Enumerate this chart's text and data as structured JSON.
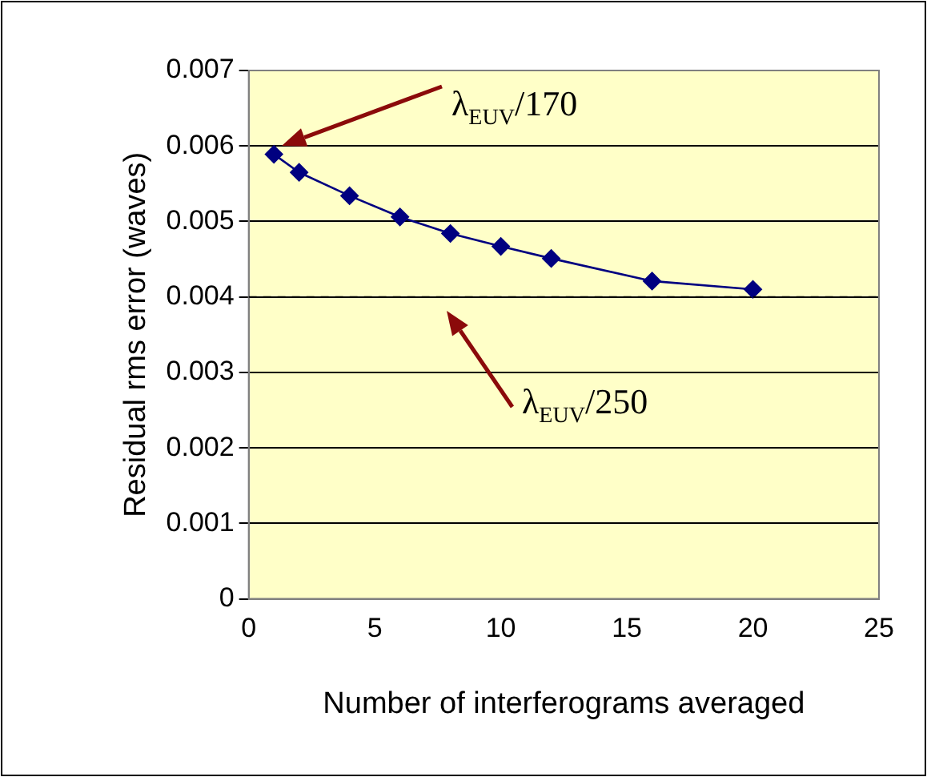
{
  "chart_data": {
    "type": "line",
    "xlabel": "Number of interferograms averaged",
    "ylabel": "Residual rms error (waves)",
    "series": [
      {
        "color": "#000080",
        "x": [
          1,
          2,
          4,
          6,
          8,
          10,
          12,
          16,
          20
        ],
        "values": [
          0.00589,
          0.00565,
          0.00534,
          0.00506,
          0.00484,
          0.00467,
          0.00451,
          0.00421,
          0.0041
        ]
      }
    ],
    "xlim": [
      0,
      25
    ],
    "xticks": [
      0,
      5,
      10,
      15,
      20,
      25
    ],
    "ylim": [
      0,
      0.007
    ],
    "yticks": [
      0,
      0.001,
      0.002,
      0.003,
      0.004,
      0.005,
      0.006,
      0.007
    ],
    "grid": "y",
    "marker": "diamond",
    "line_style": "solid",
    "legend": false,
    "ref_lines": [
      {
        "axis": "y",
        "value": 0.004,
        "color": "#000000",
        "line_style": "dashed"
      }
    ],
    "annotations": [
      "λ$_{EUV}$/170",
      "λ$_{EUV}$/250"
    ]
  }
}
